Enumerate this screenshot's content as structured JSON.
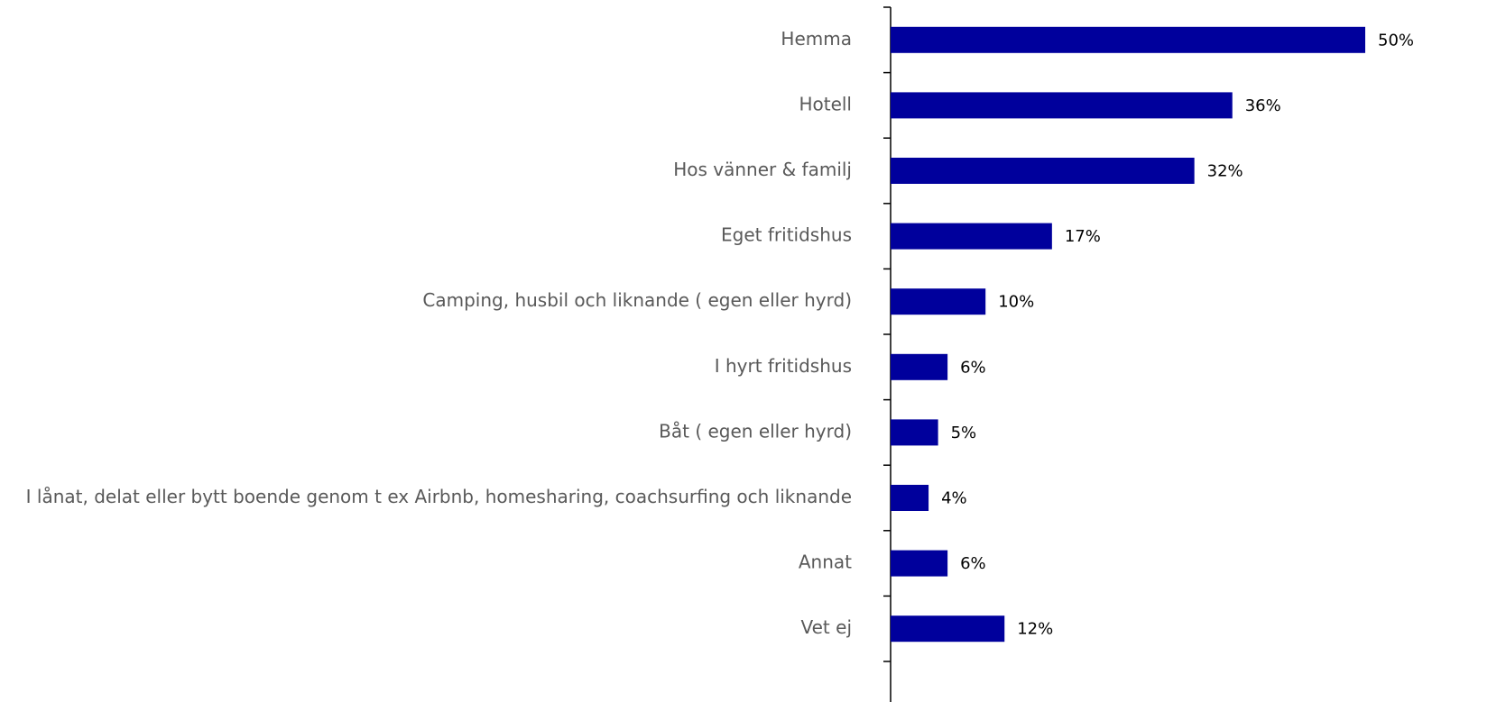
{
  "chart_data": {
    "type": "barh",
    "categories": [
      "Hemma",
      "Hotell",
      "Hos vänner & familj",
      "Eget fritidshus",
      "Camping, husbil och liknande ( egen eller hyrd)",
      "I hyrt fritidshus",
      "Båt ( egen eller hyrd)",
      "I lånat, delat eller bytt boende genom t ex Airbnb, homesharing, coachsurfing och liknande",
      "Annat",
      "Vet ej"
    ],
    "values": [
      50,
      36,
      32,
      17,
      10,
      6,
      5,
      4,
      6,
      12
    ],
    "value_labels": [
      "50%",
      "36%",
      "32%",
      "17%",
      "10%",
      "6%",
      "5%",
      "4%",
      "6%",
      "12%"
    ],
    "color": "#00009c"
  }
}
